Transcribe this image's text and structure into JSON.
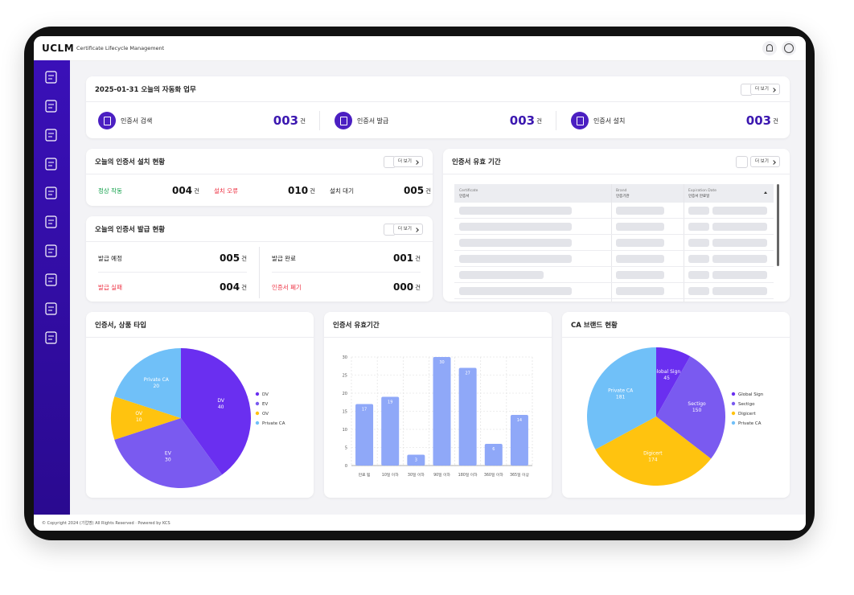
{
  "header": {
    "logo": "UCLM",
    "subtitle": "Certificate Lifecycle Management"
  },
  "automation": {
    "title": "2025-01-31 오늘의 자동화 업무",
    "more": "더 보기",
    "items": [
      {
        "label": "인증서 검색",
        "count": "003",
        "unit": "건"
      },
      {
        "label": "인증서 발급",
        "count": "003",
        "unit": "건"
      },
      {
        "label": "인증서 설치",
        "count": "003",
        "unit": "건"
      }
    ]
  },
  "install_status": {
    "title": "오늘의 인증서 설치 현황",
    "more": "더 보기",
    "items": [
      {
        "label": "정상 작동",
        "count": "004",
        "unit": "건"
      },
      {
        "label": "설치 오류",
        "count": "010",
        "unit": "건"
      },
      {
        "label": "설치 대기",
        "count": "005",
        "unit": "건"
      }
    ]
  },
  "issue_status": {
    "title": "오늘의 인증서 발급 현황",
    "more": "더 보기",
    "items": [
      {
        "label": "발급 예정",
        "count": "005",
        "unit": "건"
      },
      {
        "label": "발급 완료",
        "count": "001",
        "unit": "건"
      },
      {
        "label": "발급 실패",
        "count": "004",
        "unit": "건"
      },
      {
        "label": "인증서 폐기",
        "count": "000",
        "unit": "건"
      }
    ]
  },
  "validity_table": {
    "title": "인증서 유효 기간",
    "more": "더 보기",
    "columns": [
      {
        "en": "Certificate",
        "ko": "인증서"
      },
      {
        "en": "Brand",
        "ko": "인증기관"
      },
      {
        "en": "Expiration Date",
        "ko": "인증서 만료일"
      }
    ]
  },
  "chart_data": [
    {
      "type": "pie",
      "title": "인증서, 상품 타입",
      "categories": [
        "DV",
        "EV",
        "OV",
        "Private CA"
      ],
      "values": [
        40,
        30,
        10,
        20
      ],
      "colors": [
        "#6a2ff0",
        "#7a5af0",
        "#ffc30f",
        "#70c0f8"
      ],
      "legend": "right"
    },
    {
      "type": "bar",
      "title": "인증서 유효기간",
      "categories": [
        "만료 됨",
        "10일 이하",
        "30일 이하",
        "90일 이하",
        "180일 이하",
        "360일 이하",
        "365일 이상"
      ],
      "values": [
        17,
        19,
        3,
        30,
        27,
        6,
        14
      ],
      "color": "#8fa8f8",
      "ylim": [
        0,
        30
      ],
      "yticks": [
        0,
        5,
        10,
        15,
        20,
        25,
        30
      ],
      "grid": true
    },
    {
      "type": "pie",
      "title": "CA 브랜드 현황",
      "categories": [
        "Global Sign",
        "Sectigo",
        "Digicert",
        "Private CA"
      ],
      "values": [
        45,
        150,
        174,
        181
      ],
      "colors": [
        "#6a2ff0",
        "#7a5af0",
        "#ffc30f",
        "#70c0f8"
      ],
      "legend": "right"
    }
  ],
  "footer": "© Copyright 2024 (기업명) All Rights Reserved · Powered by KCS"
}
